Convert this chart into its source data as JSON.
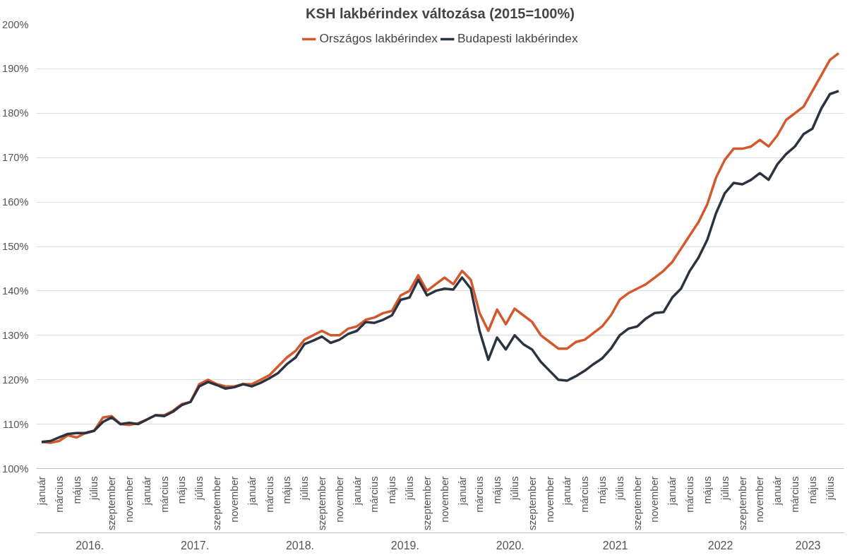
{
  "chart_data": {
    "type": "line",
    "title": "KSH lakbérindex változása (2015=100%)",
    "categories": [
      "január",
      null,
      "március",
      null,
      "május",
      null,
      "július",
      null,
      "szeptember",
      null,
      "november",
      null,
      "január",
      null,
      "március",
      null,
      "május",
      null,
      "július",
      null,
      "szeptember",
      null,
      "november",
      null,
      "január",
      null,
      "március",
      null,
      "május",
      null,
      "július",
      null,
      "szeptember",
      null,
      "november",
      null,
      "január",
      null,
      "március",
      null,
      "május",
      null,
      "július",
      null,
      "szeptember",
      null,
      "november",
      null,
      "január",
      null,
      "március",
      null,
      "május",
      null,
      "július",
      null,
      "szeptember",
      null,
      "november",
      null,
      "január",
      null,
      "március",
      null,
      "május",
      null,
      "július",
      null,
      "szeptember",
      null,
      "november",
      null,
      "január",
      null,
      "március",
      null,
      "május",
      null,
      "július",
      null,
      "szeptember",
      null,
      "november",
      null,
      "január",
      null,
      "március",
      null,
      "május",
      null,
      "július",
      null
    ],
    "annotations": [
      "2016.",
      "2017.",
      "2018.",
      "2019.",
      "2020.",
      "2021",
      "2022",
      "2023"
    ],
    "series": [
      {
        "name": "Országos lakbérindex",
        "color": "#d4582e",
        "values": [
          106.0,
          105.8,
          106.2,
          107.5,
          107.0,
          108.0,
          108.5,
          111.5,
          111.8,
          110.0,
          109.8,
          110.2,
          111.0,
          112.0,
          112.0,
          113.0,
          114.5,
          115.0,
          119.0,
          120.0,
          119.0,
          118.5,
          118.5,
          119.0,
          119.0,
          120.0,
          121.0,
          123.0,
          125.0,
          126.5,
          129.0,
          130.0,
          131.0,
          130.0,
          130.0,
          131.5,
          132.0,
          133.5,
          134.0,
          135.0,
          135.5,
          139.0,
          140.0,
          143.5,
          140.0,
          141.5,
          143.0,
          141.5,
          144.5,
          142.5,
          135.0,
          131.0,
          135.8,
          132.5,
          136.0,
          134.5,
          133.0,
          130.0,
          128.5,
          127.0,
          127.0,
          128.5,
          129.0,
          130.5,
          132.0,
          134.5,
          138.0,
          139.5,
          140.5,
          141.5,
          143.0,
          144.5,
          146.5,
          149.5,
          152.5,
          155.5,
          159.5,
          165.5,
          169.5,
          172.0,
          172.0,
          172.5,
          174.0,
          172.5,
          175.0,
          178.5,
          180.0,
          181.5,
          185.0,
          188.5,
          192.0,
          193.5
        ]
      },
      {
        "name": "Budapesti lakbérindex",
        "color": "#2b3240",
        "values": [
          106.0,
          106.2,
          107.0,
          107.8,
          108.0,
          108.0,
          108.5,
          110.5,
          111.5,
          110.0,
          110.3,
          110.0,
          111.0,
          112.0,
          111.8,
          112.8,
          114.3,
          115.0,
          118.5,
          119.5,
          118.8,
          118.0,
          118.3,
          119.0,
          118.5,
          119.3,
          120.3,
          121.5,
          123.5,
          125.0,
          128.0,
          128.8,
          129.7,
          128.3,
          129.0,
          130.3,
          131.0,
          133.0,
          132.8,
          133.5,
          134.5,
          138.0,
          138.5,
          142.5,
          139.0,
          140.0,
          140.5,
          140.3,
          143.0,
          140.5,
          131.0,
          124.5,
          129.5,
          126.8,
          130.0,
          128.0,
          126.8,
          124.0,
          122.0,
          120.0,
          119.8,
          120.8,
          122.0,
          123.5,
          124.8,
          127.0,
          130.0,
          131.5,
          132.0,
          133.8,
          135.0,
          135.2,
          138.5,
          140.5,
          144.5,
          147.5,
          151.5,
          157.5,
          162.0,
          164.3,
          164.0,
          165.0,
          166.5,
          165.0,
          168.5,
          170.8,
          172.5,
          175.3,
          176.5,
          181.0,
          184.3,
          185.0
        ]
      }
    ],
    "ylim": [
      100,
      200
    ],
    "yticks": [
      {
        "value": 100,
        "label": "100%"
      },
      {
        "value": 110,
        "label": "110%"
      },
      {
        "value": 120,
        "label": "120%"
      },
      {
        "value": 130,
        "label": "130%"
      },
      {
        "value": 140,
        "label": "140%"
      },
      {
        "value": 150,
        "label": "150%"
      },
      {
        "value": 160,
        "label": "160%"
      },
      {
        "value": 170,
        "label": "170%"
      },
      {
        "value": 180,
        "label": "180%"
      },
      {
        "value": 190,
        "label": "190%"
      },
      {
        "value": 200,
        "label": "200%"
      }
    ],
    "grid": "y",
    "legend": "top",
    "marker": "none",
    "line_style": "solid"
  }
}
